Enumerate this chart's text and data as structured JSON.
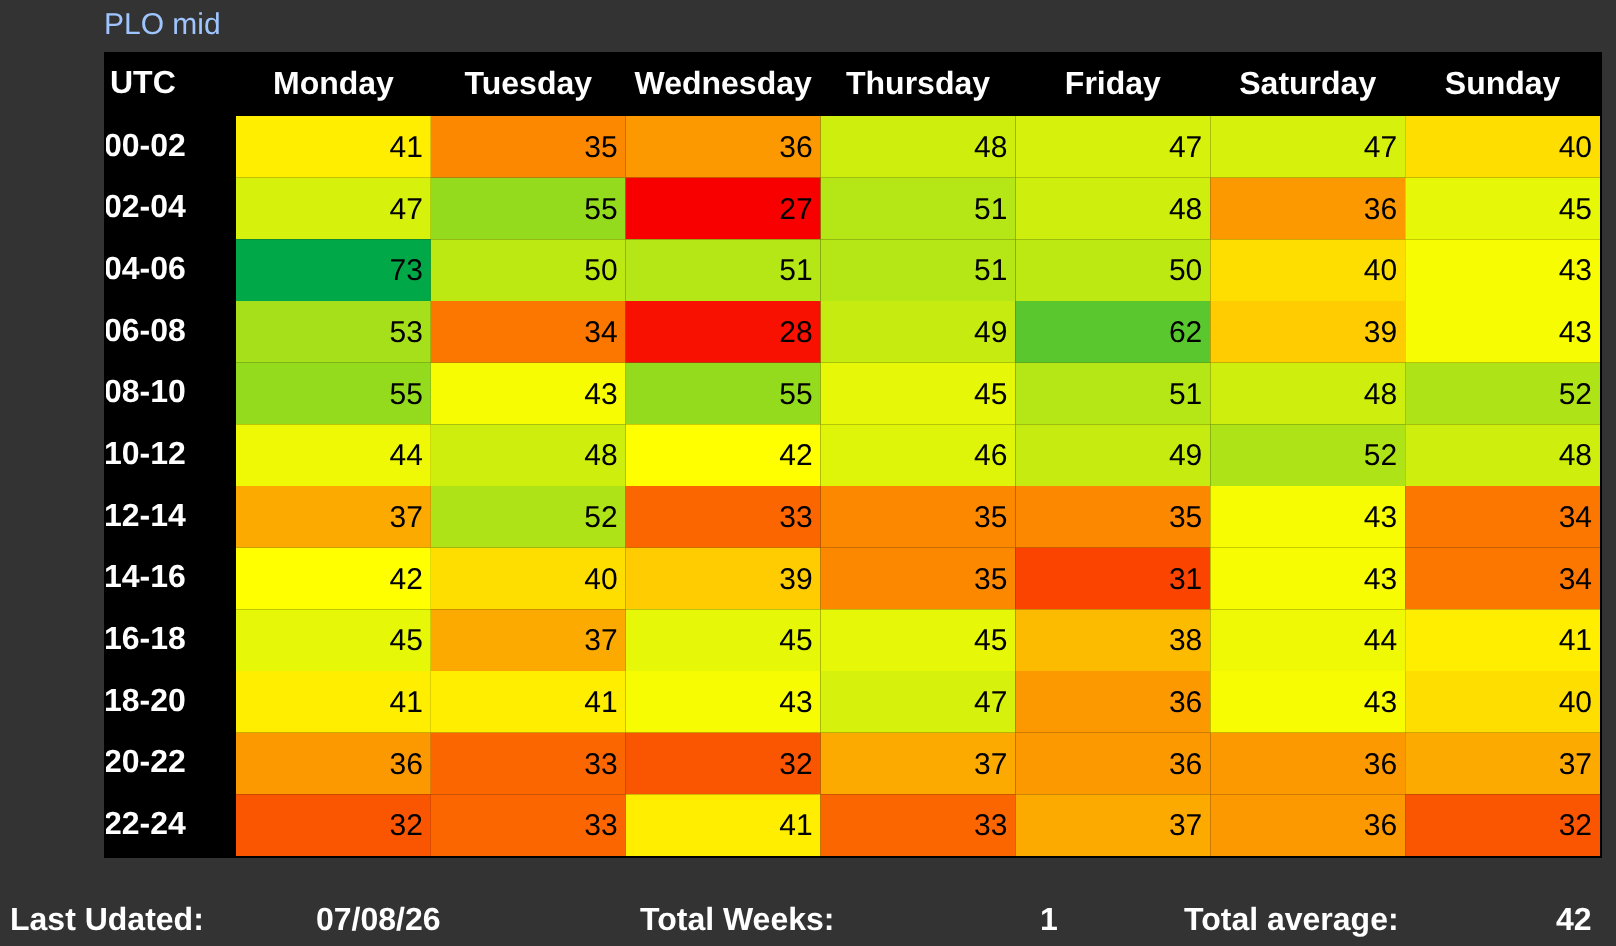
{
  "chart_data": {
    "type": "heatmap",
    "title": "PLO mid",
    "xlabel": "UTC",
    "categories": [
      "Monday",
      "Tuesday",
      "Wednesday",
      "Thursday",
      "Friday",
      "Saturday",
      "Sunday"
    ],
    "y_categories": [
      "00-02",
      "02-04",
      "04-06",
      "06-08",
      "08-10",
      "10-12",
      "12-14",
      "14-16",
      "16-18",
      "18-20",
      "20-22",
      "22-24"
    ],
    "cells": [
      [
        41,
        35,
        36,
        48,
        47,
        47,
        40
      ],
      [
        47,
        55,
        27,
        51,
        48,
        36,
        45
      ],
      [
        73,
        50,
        51,
        51,
        50,
        40,
        43
      ],
      [
        53,
        34,
        28,
        49,
        62,
        39,
        43
      ],
      [
        55,
        43,
        55,
        45,
        51,
        48,
        52
      ],
      [
        44,
        48,
        42,
        46,
        49,
        52,
        48
      ],
      [
        37,
        52,
        33,
        35,
        35,
        43,
        34
      ],
      [
        42,
        40,
        39,
        35,
        31,
        43,
        34
      ],
      [
        45,
        37,
        45,
        45,
        38,
        44,
        41
      ],
      [
        41,
        41,
        43,
        47,
        36,
        43,
        40
      ],
      [
        36,
        33,
        32,
        37,
        36,
        36,
        37
      ],
      [
        32,
        33,
        41,
        33,
        37,
        36,
        32
      ]
    ],
    "data_labels": true,
    "grid": false,
    "annotations": [
      "Last Udated:",
      "07/08/26",
      "Total Weeks:",
      "1",
      "Total average:",
      "42"
    ]
  }
}
